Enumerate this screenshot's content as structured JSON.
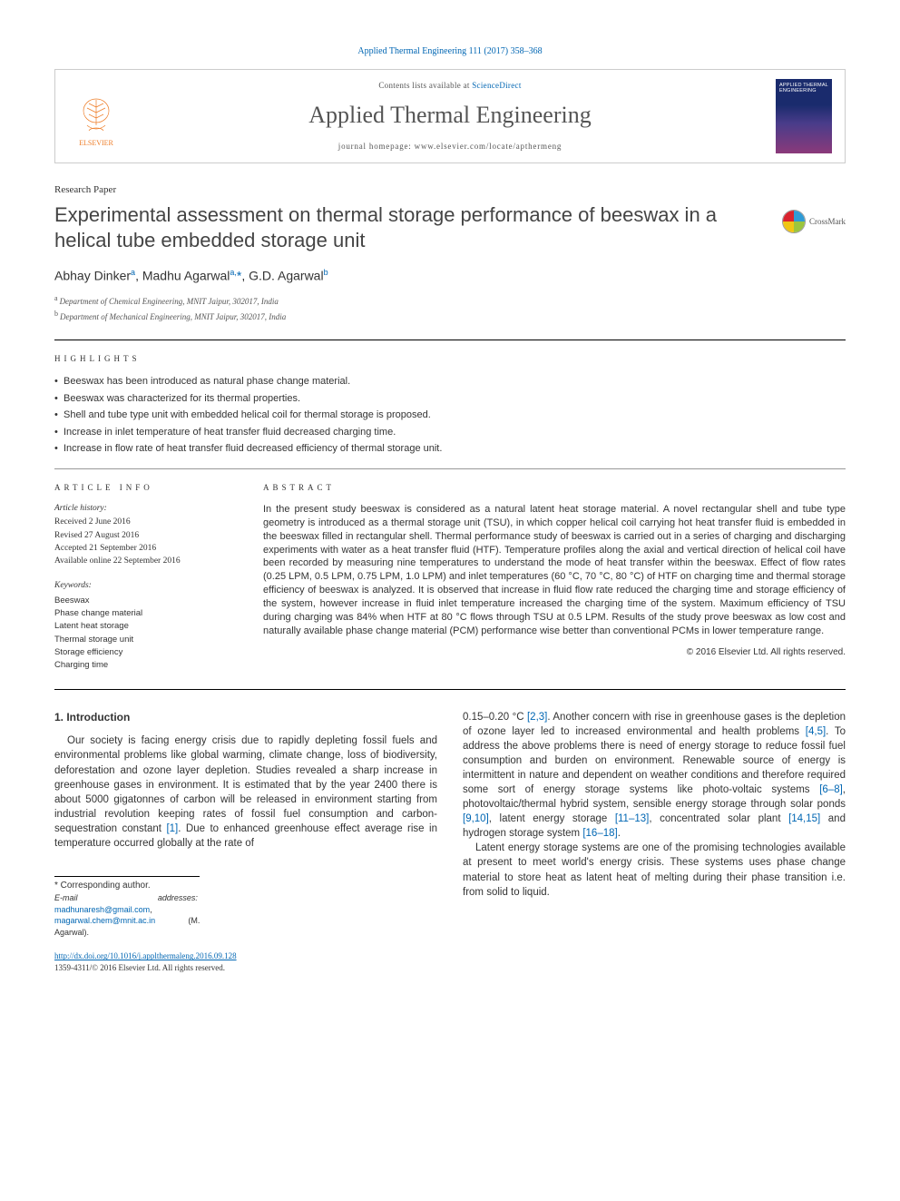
{
  "citation": "Applied Thermal Engineering 111 (2017) 358–368",
  "header": {
    "contents_prefix": "Contents lists available at ",
    "contents_link": "ScienceDirect",
    "journal": "Applied Thermal Engineering",
    "homepage_prefix": "journal homepage: ",
    "homepage_url": "www.elsevier.com/locate/apthermeng",
    "publisher": "ELSEVIER",
    "cover_title": "APPLIED THERMAL ENGINEERING"
  },
  "paper_type": "Research Paper",
  "title": "Experimental assessment on thermal storage performance of beeswax in a helical tube embedded storage unit",
  "crossmark_label": "CrossMark",
  "authors_html": "Abhay Dinker<sup>a</sup>, Madhu Agarwal<sup>a,</sup><span class='corr'>*</span>, G.D. Agarwal<sup>b</sup>",
  "affiliations": [
    {
      "sup": "a",
      "text": "Department of Chemical Engineering, MNIT Jaipur, 302017, India"
    },
    {
      "sup": "b",
      "text": "Department of Mechanical Engineering, MNIT Jaipur, 302017, India"
    }
  ],
  "highlights_label": "HIGHLIGHTS",
  "highlights": [
    "Beeswax has been introduced as natural phase change material.",
    "Beeswax was characterized for its thermal properties.",
    "Shell and tube type unit with embedded helical coil for thermal storage is proposed.",
    "Increase in inlet temperature of heat transfer fluid decreased charging time.",
    "Increase in flow rate of heat transfer fluid decreased efficiency of thermal storage unit."
  ],
  "article_info_label": "ARTICLE INFO",
  "history_label": "Article history:",
  "history": [
    "Received 2 June 2016",
    "Revised 27 August 2016",
    "Accepted 21 September 2016",
    "Available online 22 September 2016"
  ],
  "keywords_label": "Keywords:",
  "keywords": [
    "Beeswax",
    "Phase change material",
    "Latent heat storage",
    "Thermal storage unit",
    "Storage efficiency",
    "Charging time"
  ],
  "abstract_label": "ABSTRACT",
  "abstract": "In the present study beeswax is considered as a natural latent heat storage material. A novel rectangular shell and tube type geometry is introduced as a thermal storage unit (TSU), in which copper helical coil carrying hot heat transfer fluid is embedded in the beeswax filled in rectangular shell. Thermal performance study of beeswax is carried out in a series of charging and discharging experiments with water as a heat transfer fluid (HTF). Temperature profiles along the axial and vertical direction of helical coil have been recorded by measuring nine temperatures to understand the mode of heat transfer within the beeswax. Effect of flow rates (0.25 LPM, 0.5 LPM, 0.75 LPM, 1.0 LPM) and inlet temperatures (60 °C, 70 °C, 80 °C) of HTF on charging time and thermal storage efficiency of beeswax is analyzed. It is observed that increase in fluid flow rate reduced the charging time and storage efficiency of the system, however increase in fluid inlet temperature increased the charging time of the system. Maximum efficiency of TSU during charging was 84% when HTF at 80 °C flows through TSU at 0.5 LPM. Results of the study prove beeswax as low cost and naturally available phase change material (PCM) performance wise better than conventional PCMs in lower temperature range.",
  "abstract_copy": "© 2016 Elsevier Ltd. All rights reserved.",
  "intro_heading": "1. Introduction",
  "intro_col1": "Our society is facing energy crisis due to rapidly depleting fossil fuels and environmental problems like global warming, climate change, loss of biodiversity, deforestation and ozone layer depletion. Studies revealed a sharp increase in greenhouse gases in environment. It is estimated that by the year 2400 there is about 5000 gigatonnes of carbon will be released in environment starting from industrial revolution keeping rates of fossil fuel consumption and carbon-sequestration constant [1]. Due to enhanced greenhouse effect average rise in temperature occurred globally at the rate of",
  "intro_col2_p1": "0.15–0.20 °C [2,3]. Another concern with rise in greenhouse gases is the depletion of ozone layer led to increased environmental and health problems [4,5]. To address the above problems there is need of energy storage to reduce fossil fuel consumption and burden on environment. Renewable source of energy is intermittent in nature and dependent on weather conditions and therefore required some sort of energy storage systems like photo-voltaic systems [6–8], photovoltaic/thermal hybrid system, sensible energy storage through solar ponds [9,10], latent energy storage [11–13], concentrated solar plant [14,15] and hydrogen storage system [16–18].",
  "intro_col2_p2": "Latent energy storage systems are one of the promising technologies available at present to meet world's energy crisis. These systems uses phase change material to store heat as latent heat of melting during their phase transition i.e. from solid to liquid.",
  "footnotes": {
    "corr_label": "* Corresponding author.",
    "email_label": "E-mail addresses:",
    "email1": "madhunaresh@gmail.com",
    "email2": "magarwal.chem@mnit.ac.in",
    "email_attr": "(M. Agarwal)."
  },
  "footer": {
    "doi": "http://dx.doi.org/10.1016/j.applthermaleng.2016.09.128",
    "issn_copy": "1359-4311/© 2016 Elsevier Ltd. All rights reserved."
  },
  "refs": {
    "r1": "[1]",
    "r23": "[2,3]",
    "r45": "[4,5]",
    "r68": "[6–8]",
    "r910": "[9,10]",
    "r1113": "[11–13]",
    "r1415": "[14,15]",
    "r1618": "[16–18]"
  }
}
